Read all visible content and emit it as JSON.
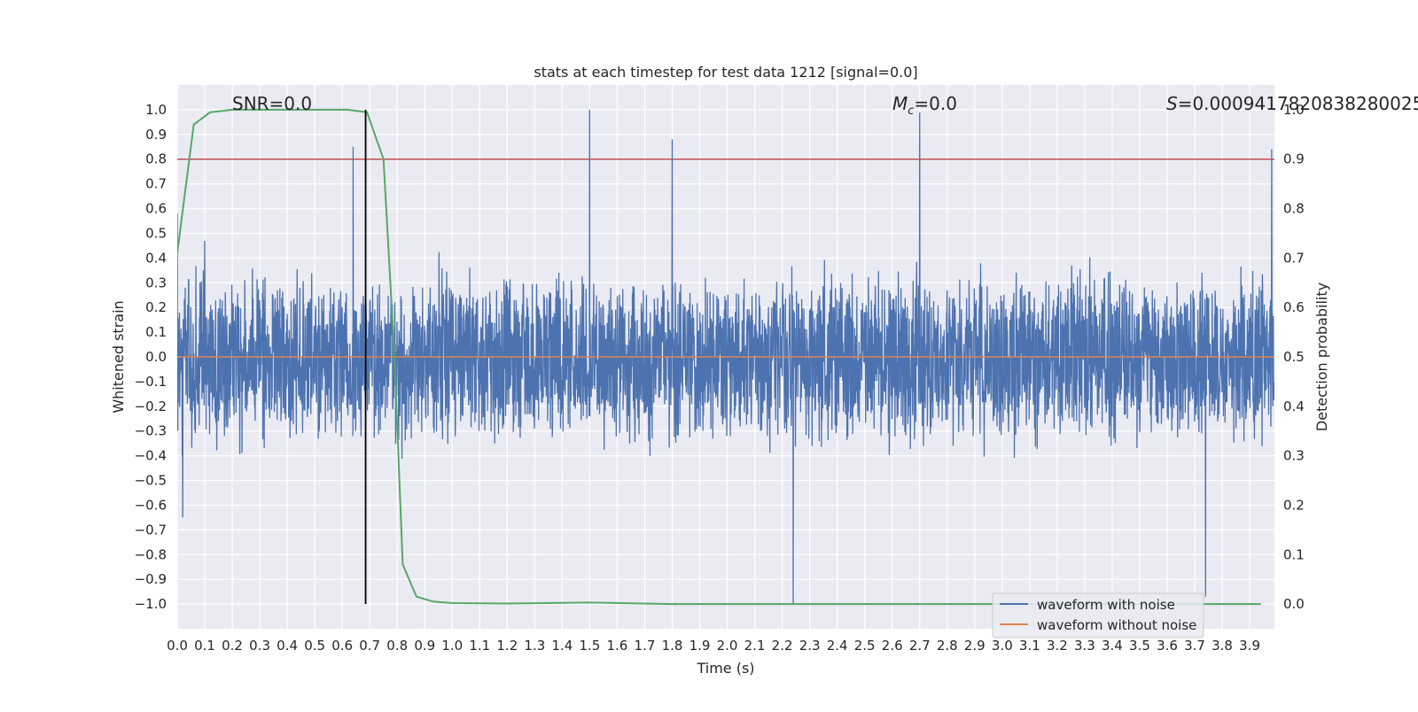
{
  "chart_data": {
    "type": "line",
    "title": "stats at each timestep for test data 1212 [signal=0.0]",
    "xlabel": "Time (s)",
    "ylabel": "Whitened strain",
    "ylabel_right": "Detection probability",
    "xlim": [
      0.0,
      3.99
    ],
    "ylim": [
      -1.1,
      1.1
    ],
    "ylim_right": [
      -0.05,
      1.05
    ],
    "x_ticks": [
      "0.0",
      "0.1",
      "0.2",
      "0.3",
      "0.4",
      "0.5",
      "0.6",
      "0.7",
      "0.8",
      "0.9",
      "1.0",
      "1.1",
      "1.2",
      "1.3",
      "1.4",
      "1.5",
      "1.6",
      "1.7",
      "1.8",
      "1.9",
      "2.0",
      "2.1",
      "2.2",
      "2.3",
      "2.4",
      "2.5",
      "2.6",
      "2.7",
      "2.8",
      "2.9",
      "3.0",
      "3.1",
      "3.2",
      "3.3",
      "3.4",
      "3.5",
      "3.6",
      "3.7",
      "3.8",
      "3.9"
    ],
    "y_ticks": [
      "1.0",
      "0.9",
      "0.8",
      "0.7",
      "0.6",
      "0.5",
      "0.4",
      "0.3",
      "0.2",
      "0.1",
      "0.0",
      "−0.1",
      "−0.2",
      "−0.3",
      "−0.4",
      "−0.5",
      "−0.6",
      "−0.7",
      "−0.8",
      "−0.9",
      "−1.0"
    ],
    "y_ticks_right": [
      "1.0",
      "0.9",
      "0.8",
      "0.7",
      "0.6",
      "0.5",
      "0.4",
      "0.3",
      "0.2",
      "0.1",
      "0.0"
    ],
    "grid": true,
    "legend": {
      "placement": "lower-right",
      "entries": [
        {
          "label": "waveform with noise",
          "color": "#4c72b0"
        },
        {
          "label": "waveform without noise",
          "color": "#dd8452"
        }
      ]
    },
    "annotations": {
      "snr": "SNR=0.0",
      "mc_symbol": "M",
      "mc_sub": "c",
      "mc_value": "=0.0",
      "s_symbol": "S",
      "s_value": "=0.0009417820838280025"
    },
    "threshold_right": 0.9,
    "vertical_marker_x": 0.685,
    "series": [
      {
        "name": "waveform with noise",
        "color": "#4c72b0",
        "axis": "left",
        "note_points": [
          [
            0.0,
            0.58
          ],
          [
            0.02,
            -0.65
          ],
          [
            0.1,
            0.47
          ],
          [
            0.64,
            0.85
          ],
          [
            1.5,
            1.0
          ],
          [
            1.8,
            0.88
          ],
          [
            2.24,
            -1.0
          ],
          [
            2.7,
            0.99
          ],
          [
            3.74,
            -0.97
          ],
          [
            3.98,
            0.84
          ]
        ]
      },
      {
        "name": "waveform without noise",
        "color": "#dd8452",
        "axis": "left",
        "x": [
          0.0,
          3.99
        ],
        "y": [
          0.0,
          0.0
        ]
      },
      {
        "color": "#55a868",
        "axis": "right",
        "x": [
          0.0,
          0.06,
          0.12,
          0.2,
          0.3,
          0.45,
          0.62,
          0.69,
          0.75,
          0.79,
          0.82,
          0.87,
          0.93,
          1.0,
          1.2,
          1.5,
          1.8,
          2.1,
          2.4,
          2.7,
          3.0,
          3.3,
          3.6,
          3.94
        ],
        "y": [
          0.71,
          0.97,
          0.995,
          1.0,
          1.0,
          1.0,
          1.0,
          0.995,
          0.9,
          0.5,
          0.08,
          0.015,
          0.005,
          0.002,
          0.001,
          0.003,
          0.0,
          0.0,
          0.0,
          0.0,
          0.0,
          0.0,
          0.0,
          0.0
        ]
      }
    ],
    "colors": {
      "background": "#eaeaf2",
      "grid": "#ffffff",
      "threshold": "#c44e52",
      "marker": "#000000"
    }
  }
}
